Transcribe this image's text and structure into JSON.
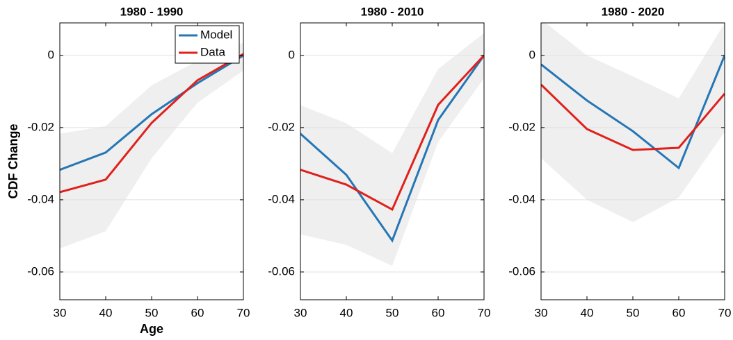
{
  "chart_data": [
    {
      "type": "line",
      "title": "1980 - 1990",
      "xlabel": "Age",
      "ylabel": "CDF Change",
      "x": [
        30,
        40,
        50,
        60,
        70
      ],
      "series": [
        {
          "name": "Model",
          "color": "#2576b5",
          "values": [
            -0.0317,
            -0.0269,
            -0.0163,
            -0.0077,
            0
          ]
        },
        {
          "name": "Data",
          "color": "#e0201b",
          "values": [
            -0.0379,
            -0.0344,
            -0.0187,
            -0.0069,
            0.0004
          ]
        }
      ],
      "band": {
        "color": "#efefef",
        "lower": [
          -0.0535,
          -0.0487,
          -0.0285,
          -0.0131,
          -0.0042
        ],
        "upper": [
          -0.0217,
          -0.0196,
          -0.0083,
          -0.0015,
          0.0035
        ]
      },
      "xlim": [
        30,
        70
      ],
      "ylim": [
        -0.0677,
        0.009
      ],
      "xticks": [
        30,
        40,
        50,
        60,
        70
      ],
      "yticks": [
        0,
        -0.02,
        -0.04,
        -0.06
      ],
      "grid": "y",
      "legend": "upper right"
    },
    {
      "type": "line",
      "title": "1980 - 2010",
      "x": [
        30,
        40,
        50,
        60,
        70
      ],
      "series": [
        {
          "name": "Model",
          "color": "#2576b5",
          "values": [
            -0.0217,
            -0.0331,
            -0.0513,
            -0.0179,
            0
          ]
        },
        {
          "name": "Data",
          "color": "#e0201b",
          "values": [
            -0.0317,
            -0.0358,
            -0.0427,
            -0.0137,
            0
          ]
        }
      ],
      "band": {
        "color": "#efefef",
        "lower": [
          -0.0496,
          -0.0525,
          -0.0583,
          -0.024,
          -0.0063
        ],
        "upper": [
          -0.0138,
          -0.0188,
          -0.0271,
          -0.0038,
          0.0062
        ]
      },
      "xlim": [
        30,
        70
      ],
      "ylim": [
        -0.0677,
        0.009
      ],
      "xticks": [
        30,
        40,
        50,
        60,
        70
      ],
      "yticks": [
        0,
        -0.02,
        -0.04,
        -0.06
      ],
      "grid": "y"
    },
    {
      "type": "line",
      "title": "1980 - 2020",
      "x": [
        30,
        40,
        50,
        60,
        70
      ],
      "series": [
        {
          "name": "Model",
          "color": "#2576b5",
          "values": [
            -0.0025,
            -0.0125,
            -0.021,
            -0.0312,
            0
          ]
        },
        {
          "name": "Data",
          "color": "#e0201b",
          "values": [
            -0.0081,
            -0.0204,
            -0.0262,
            -0.0256,
            -0.0106
          ]
        }
      ],
      "band": {
        "color": "#efefef",
        "lower": [
          -0.0285,
          -0.04,
          -0.0462,
          -0.0394,
          -0.0212
        ],
        "upper": [
          0.01,
          0,
          -0.0058,
          -0.0119,
          0.009
        ]
      },
      "xlim": [
        30,
        70
      ],
      "ylim": [
        -0.0677,
        0.009
      ],
      "xticks": [
        30,
        40,
        50,
        60,
        70
      ],
      "yticks": [
        0,
        -0.02,
        -0.04,
        -0.06
      ],
      "grid": "y"
    }
  ]
}
